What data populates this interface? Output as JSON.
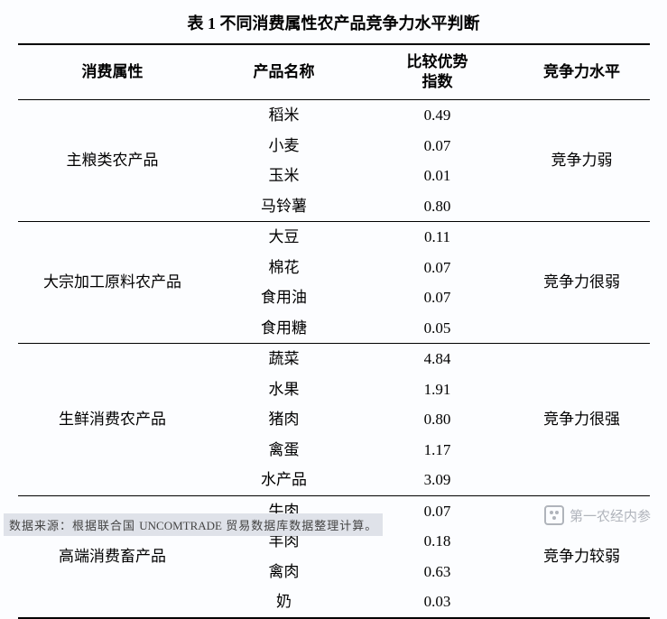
{
  "title": "表 1 不同消费属性农产品竞争力水平判断",
  "columns": [
    "消费属性",
    "产品名称",
    "比较优势指数",
    "竞争力水平"
  ],
  "column_header_lines": {
    "idx_line1": "比较优势",
    "idx_line2": "指数"
  },
  "groups": [
    {
      "attribute": "主粮类农产品",
      "level": "竞争力弱",
      "items": [
        {
          "name": "稻米",
          "index": "0.49"
        },
        {
          "name": "小麦",
          "index": "0.07"
        },
        {
          "name": "玉米",
          "index": "0.01"
        },
        {
          "name": "马铃薯",
          "index": "0.80"
        }
      ]
    },
    {
      "attribute": "大宗加工原料农产品",
      "level": "竞争力很弱",
      "items": [
        {
          "name": "大豆",
          "index": "0.11"
        },
        {
          "name": "棉花",
          "index": "0.07"
        },
        {
          "name": "食用油",
          "index": "0.07"
        },
        {
          "name": "食用糖",
          "index": "0.05"
        }
      ]
    },
    {
      "attribute": "生鲜消费农产品",
      "level": "竞争力很强",
      "items": [
        {
          "name": "蔬菜",
          "index": "4.84"
        },
        {
          "name": "水果",
          "index": "1.91"
        },
        {
          "name": "猪肉",
          "index": "0.80"
        },
        {
          "name": "禽蛋",
          "index": "1.17"
        },
        {
          "name": "水产品",
          "index": "3.09"
        }
      ]
    },
    {
      "attribute": "高端消费畜产品",
      "level": "竞争力较弱",
      "items": [
        {
          "name": "牛肉",
          "index": "0.07"
        },
        {
          "name": "羊肉",
          "index": "0.18"
        },
        {
          "name": "禽肉",
          "index": "0.63"
        },
        {
          "name": "奶",
          "index": "0.03"
        }
      ]
    }
  ],
  "source_prefix": "数据来源：根据联合国 ",
  "source_db": "UNCOMTRADE",
  "source_suffix": " 贸易数据库数据整理计算。",
  "watermark": "第一农经内参"
}
